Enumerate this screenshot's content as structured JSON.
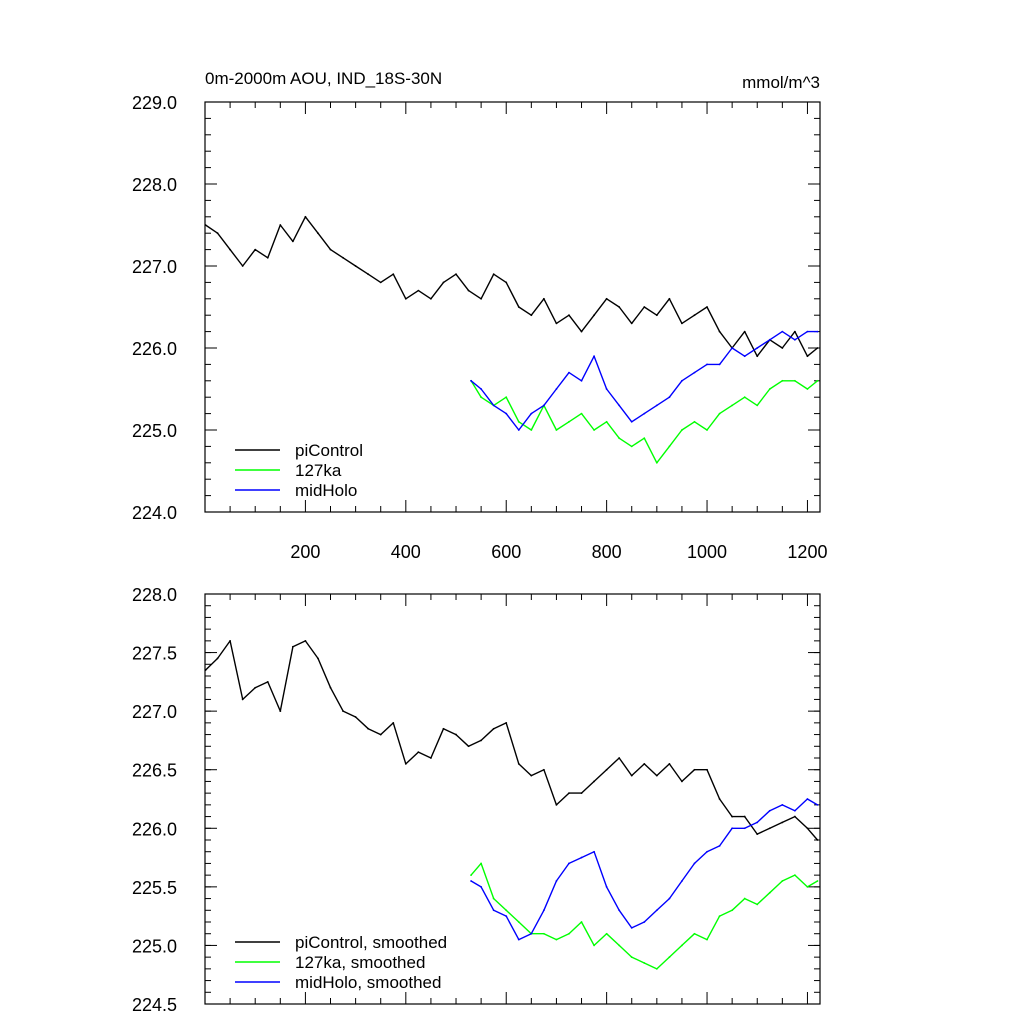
{
  "chart_data": [
    {
      "type": "line",
      "title": "0m-2000m AOU, IND_18S-30N",
      "units": "mmol/m^3",
      "xlim": [
        0,
        1225
      ],
      "ylim": [
        224.0,
        229.0
      ],
      "xticks": [
        200,
        400,
        600,
        800,
        1000,
        1200
      ],
      "xtick_labels": [
        "200",
        "400",
        "600",
        "800",
        "1000",
        "1200"
      ],
      "yticks": [
        224.0,
        225.0,
        226.0,
        227.0,
        228.0,
        229.0
      ],
      "ytick_labels": [
        "224.0",
        "225.0",
        "226.0",
        "227.0",
        "228.0",
        "229.0"
      ],
      "legend_position": "bottom-left",
      "series": [
        {
          "name": "piControl",
          "color": "#000000",
          "x": [
            1,
            25,
            50,
            75,
            100,
            125,
            150,
            175,
            200,
            225,
            250,
            275,
            300,
            325,
            350,
            375,
            400,
            425,
            450,
            475,
            500,
            525,
            550,
            575,
            600,
            625,
            650,
            675,
            700,
            725,
            750,
            775,
            800,
            825,
            850,
            875,
            900,
            925,
            950,
            975,
            1000,
            1025,
            1050,
            1075,
            1100,
            1125,
            1150,
            1175,
            1200,
            1220
          ],
          "y": [
            227.5,
            227.4,
            227.2,
            227.0,
            227.2,
            227.1,
            227.5,
            227.3,
            227.6,
            227.4,
            227.2,
            227.1,
            227.0,
            226.9,
            226.8,
            226.9,
            226.6,
            226.7,
            226.6,
            226.8,
            226.9,
            226.7,
            226.6,
            226.9,
            226.8,
            226.5,
            226.4,
            226.6,
            226.3,
            226.4,
            226.2,
            226.4,
            226.6,
            226.5,
            226.3,
            226.5,
            226.4,
            226.6,
            226.3,
            226.4,
            226.5,
            226.2,
            226.0,
            226.2,
            225.9,
            226.1,
            226.0,
            226.2,
            225.9,
            226.0
          ]
        },
        {
          "name": "127ka",
          "color": "#00ff00",
          "x": [
            530,
            550,
            575,
            600,
            625,
            650,
            675,
            700,
            725,
            750,
            775,
            800,
            825,
            850,
            875,
            900,
            925,
            950,
            975,
            1000,
            1025,
            1050,
            1075,
            1100,
            1125,
            1150,
            1175,
            1200,
            1220
          ],
          "y": [
            225.6,
            225.4,
            225.3,
            225.4,
            225.1,
            225.0,
            225.3,
            225.0,
            225.1,
            225.2,
            225.0,
            225.1,
            224.9,
            224.8,
            224.9,
            224.6,
            224.8,
            225.0,
            225.1,
            225.0,
            225.2,
            225.3,
            225.4,
            225.3,
            225.5,
            225.6,
            225.6,
            225.5,
            225.6
          ]
        },
        {
          "name": "midHolo",
          "color": "#0000ff",
          "x": [
            530,
            550,
            575,
            600,
            625,
            650,
            675,
            700,
            725,
            750,
            775,
            800,
            825,
            850,
            875,
            900,
            925,
            950,
            975,
            1000,
            1025,
            1050,
            1075,
            1100,
            1125,
            1150,
            1175,
            1200,
            1220
          ],
          "y": [
            225.6,
            225.5,
            225.3,
            225.2,
            225.0,
            225.2,
            225.3,
            225.5,
            225.7,
            225.6,
            225.9,
            225.5,
            225.3,
            225.1,
            225.2,
            225.3,
            225.4,
            225.6,
            225.7,
            225.8,
            225.8,
            226.0,
            225.9,
            226.0,
            226.1,
            226.2,
            226.1,
            226.2,
            226.2
          ]
        }
      ]
    },
    {
      "type": "line",
      "xlim": [
        0,
        1225
      ],
      "ylim": [
        224.5,
        228.0
      ],
      "xticks": [
        200,
        400,
        600,
        800,
        1000,
        1200
      ],
      "yticks": [
        224.5,
        225.0,
        225.5,
        226.0,
        226.5,
        227.0,
        227.5,
        228.0
      ],
      "ytick_labels": [
        "224.5",
        "225.0",
        "225.5",
        "226.0",
        "226.5",
        "227.0",
        "227.5",
        "228.0"
      ],
      "legend_position": "bottom-left",
      "series": [
        {
          "name": "piControl, smoothed",
          "color": "#000000",
          "x": [
            1,
            25,
            50,
            75,
            100,
            125,
            150,
            175,
            200,
            225,
            250,
            275,
            300,
            325,
            350,
            375,
            400,
            425,
            450,
            475,
            500,
            525,
            550,
            575,
            600,
            625,
            650,
            675,
            700,
            725,
            750,
            775,
            800,
            825,
            850,
            875,
            900,
            925,
            950,
            975,
            1000,
            1025,
            1050,
            1075,
            1100,
            1125,
            1150,
            1175,
            1200,
            1220
          ],
          "y": [
            227.35,
            227.45,
            227.6,
            227.1,
            227.2,
            227.25,
            227.0,
            227.55,
            227.6,
            227.45,
            227.2,
            227.0,
            226.95,
            226.85,
            226.8,
            226.9,
            226.55,
            226.65,
            226.6,
            226.85,
            226.8,
            226.7,
            226.75,
            226.85,
            226.9,
            226.55,
            226.45,
            226.5,
            226.2,
            226.3,
            226.3,
            226.4,
            226.5,
            226.6,
            226.45,
            226.55,
            226.45,
            226.55,
            226.4,
            226.5,
            226.5,
            226.25,
            226.1,
            226.1,
            225.95,
            226.0,
            226.05,
            226.1,
            226.0,
            225.9
          ]
        },
        {
          "name": "127ka, smoothed",
          "color": "#00ff00",
          "x": [
            530,
            550,
            575,
            600,
            625,
            650,
            675,
            700,
            725,
            750,
            775,
            800,
            825,
            850,
            875,
            900,
            925,
            950,
            975,
            1000,
            1025,
            1050,
            1075,
            1100,
            1125,
            1150,
            1175,
            1200,
            1220
          ],
          "y": [
            225.6,
            225.7,
            225.4,
            225.3,
            225.2,
            225.1,
            225.1,
            225.05,
            225.1,
            225.2,
            225.0,
            225.1,
            225.0,
            224.9,
            224.85,
            224.8,
            224.9,
            225.0,
            225.1,
            225.05,
            225.25,
            225.3,
            225.4,
            225.35,
            225.45,
            225.55,
            225.6,
            225.5,
            225.55
          ]
        },
        {
          "name": "midHolo, smoothed",
          "color": "#0000ff",
          "x": [
            530,
            550,
            575,
            600,
            625,
            650,
            675,
            700,
            725,
            750,
            775,
            800,
            825,
            850,
            875,
            900,
            925,
            950,
            975,
            1000,
            1025,
            1050,
            1075,
            1100,
            1125,
            1150,
            1175,
            1200,
            1220
          ],
          "y": [
            225.55,
            225.5,
            225.3,
            225.25,
            225.05,
            225.1,
            225.3,
            225.55,
            225.7,
            225.75,
            225.8,
            225.5,
            225.3,
            225.15,
            225.2,
            225.3,
            225.4,
            225.55,
            225.7,
            225.8,
            225.85,
            226.0,
            226.0,
            226.05,
            226.15,
            226.2,
            226.15,
            226.25,
            226.2
          ]
        }
      ]
    }
  ]
}
